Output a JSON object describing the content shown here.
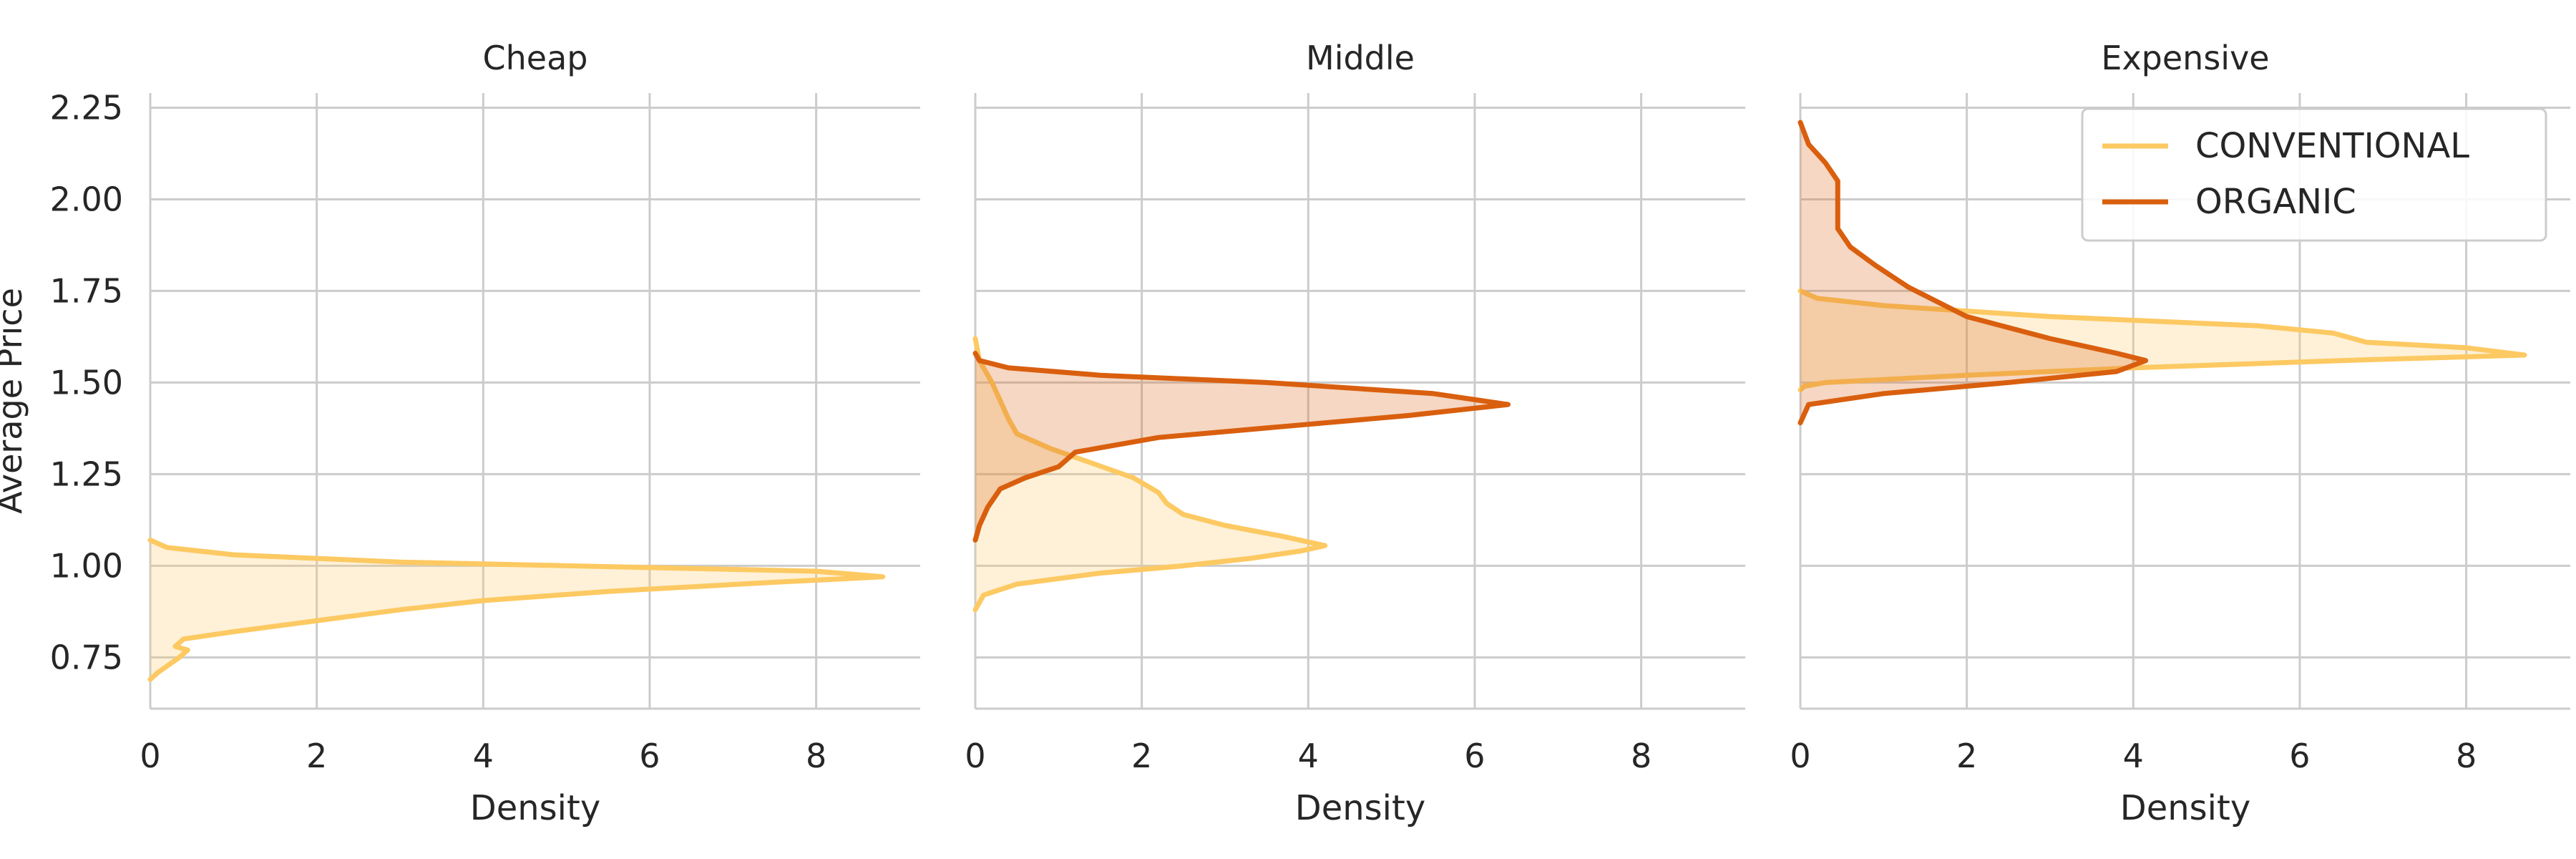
{
  "chart_data": {
    "type": "area",
    "ylabel": "Average Price",
    "yticks": [
      0.75,
      1.0,
      1.25,
      1.5,
      1.75,
      2.0,
      2.25
    ],
    "xticks": [
      0,
      2,
      4,
      6,
      8
    ],
    "xlim": [
      0,
      9.25
    ],
    "ylim": [
      0.61,
      2.29
    ],
    "grid": true,
    "legend": {
      "placement": "top-right",
      "entries": [
        {
          "label": "CONVENTIONAL",
          "color": "#fdc962"
        },
        {
          "label": "ORGANIC",
          "color": "#d95f0e"
        }
      ]
    },
    "panels": [
      {
        "title": "Cheap",
        "xlabel": "Density",
        "series": [
          {
            "name": "CONVENTIONAL",
            "color": "#fdc962",
            "points": [
              [
                0.0,
                0.69
              ],
              [
                0.1,
                0.71
              ],
              [
                0.35,
                0.75
              ],
              [
                0.45,
                0.77
              ],
              [
                0.3,
                0.78
              ],
              [
                0.4,
                0.8
              ],
              [
                1.0,
                0.82
              ],
              [
                2.0,
                0.85
              ],
              [
                3.0,
                0.88
              ],
              [
                4.0,
                0.905
              ],
              [
                5.5,
                0.93
              ],
              [
                7.5,
                0.955
              ],
              [
                8.8,
                0.97
              ],
              [
                8.0,
                0.985
              ],
              [
                6.0,
                0.995
              ],
              [
                3.0,
                1.01
              ],
              [
                1.0,
                1.03
              ],
              [
                0.2,
                1.05
              ],
              [
                0.0,
                1.07
              ]
            ]
          }
        ]
      },
      {
        "title": "Middle",
        "xlabel": "Density",
        "series": [
          {
            "name": "CONVENTIONAL",
            "color": "#fdc962",
            "points": [
              [
                0.0,
                0.88
              ],
              [
                0.1,
                0.92
              ],
              [
                0.5,
                0.95
              ],
              [
                1.5,
                0.98
              ],
              [
                2.5,
                1.0
              ],
              [
                3.3,
                1.02
              ],
              [
                3.9,
                1.04
              ],
              [
                4.2,
                1.055
              ],
              [
                3.7,
                1.08
              ],
              [
                3.0,
                1.11
              ],
              [
                2.5,
                1.14
              ],
              [
                2.3,
                1.17
              ],
              [
                2.2,
                1.2
              ],
              [
                1.9,
                1.24
              ],
              [
                1.4,
                1.28
              ],
              [
                0.9,
                1.32
              ],
              [
                0.5,
                1.36
              ],
              [
                0.4,
                1.4
              ],
              [
                0.3,
                1.45
              ],
              [
                0.2,
                1.5
              ],
              [
                0.05,
                1.56
              ],
              [
                0.0,
                1.62
              ]
            ]
          },
          {
            "name": "ORGANIC",
            "color": "#d95f0e",
            "points": [
              [
                0.0,
                1.07
              ],
              [
                0.05,
                1.11
              ],
              [
                0.15,
                1.16
              ],
              [
                0.3,
                1.21
              ],
              [
                0.6,
                1.24
              ],
              [
                1.0,
                1.27
              ],
              [
                1.2,
                1.31
              ],
              [
                2.2,
                1.35
              ],
              [
                3.7,
                1.38
              ],
              [
                5.2,
                1.41
              ],
              [
                6.4,
                1.44
              ],
              [
                5.5,
                1.47
              ],
              [
                3.5,
                1.5
              ],
              [
                1.5,
                1.52
              ],
              [
                0.4,
                1.54
              ],
              [
                0.05,
                1.56
              ],
              [
                0.0,
                1.58
              ]
            ]
          }
        ]
      },
      {
        "title": "Expensive",
        "xlabel": "Density",
        "series": [
          {
            "name": "CONVENTIONAL",
            "color": "#fdc962",
            "points": [
              [
                0.0,
                1.48
              ],
              [
                0.05,
                1.49
              ],
              [
                0.3,
                1.5
              ],
              [
                2.0,
                1.52
              ],
              [
                4.0,
                1.54
              ],
              [
                6.5,
                1.56
              ],
              [
                8.7,
                1.575
              ],
              [
                8.0,
                1.595
              ],
              [
                6.8,
                1.61
              ],
              [
                6.4,
                1.635
              ],
              [
                5.5,
                1.655
              ],
              [
                3.0,
                1.68
              ],
              [
                1.0,
                1.71
              ],
              [
                0.2,
                1.73
              ],
              [
                0.0,
                1.75
              ]
            ]
          },
          {
            "name": "ORGANIC",
            "color": "#d95f0e",
            "points": [
              [
                0.0,
                1.39
              ],
              [
                0.1,
                1.44
              ],
              [
                1.0,
                1.47
              ],
              [
                2.5,
                1.5
              ],
              [
                3.8,
                1.53
              ],
              [
                4.15,
                1.56
              ],
              [
                3.8,
                1.58
              ],
              [
                3.0,
                1.62
              ],
              [
                2.0,
                1.68
              ],
              [
                1.3,
                1.76
              ],
              [
                0.9,
                1.82
              ],
              [
                0.6,
                1.87
              ],
              [
                0.45,
                1.92
              ],
              [
                0.45,
                1.98
              ],
              [
                0.45,
                2.05
              ],
              [
                0.3,
                2.1
              ],
              [
                0.1,
                2.15
              ],
              [
                0.0,
                2.21
              ]
            ]
          }
        ]
      }
    ]
  }
}
